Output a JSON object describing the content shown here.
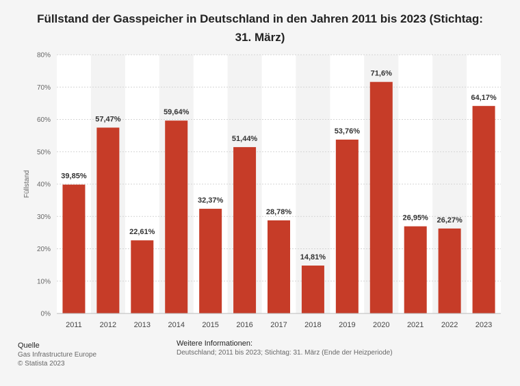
{
  "title": "Füllstand der Gasspeicher in Deutschland in den Jahren 2011 bis 2023 (Stichtag: 31. März)",
  "chart_data": {
    "type": "bar",
    "title": "Füllstand der Gasspeicher in Deutschland in den Jahren 2011 bis 2023 (Stichtag: 31. März)",
    "xlabel": "",
    "ylabel": "Füllstand",
    "categories": [
      "2011",
      "2012",
      "2013",
      "2014",
      "2015",
      "2016",
      "2017",
      "2018",
      "2019",
      "2020",
      "2021",
      "2022",
      "2023"
    ],
    "values": [
      39.85,
      57.47,
      22.61,
      59.64,
      32.37,
      51.44,
      28.78,
      14.81,
      53.76,
      71.6,
      26.95,
      26.27,
      64.17
    ],
    "value_labels": [
      "39,85%",
      "57,47%",
      "22,61%",
      "59,64%",
      "32,37%",
      "51,44%",
      "28,78%",
      "14,81%",
      "53,76%",
      "71,6%",
      "26,95%",
      "26,27%",
      "64,17%"
    ],
    "yticks": [
      0,
      10,
      20,
      30,
      40,
      50,
      60,
      70,
      80
    ],
    "ytick_labels": [
      "0%",
      "10%",
      "20%",
      "30%",
      "40%",
      "50%",
      "60%",
      "70%",
      "80%"
    ],
    "ylim": [
      0,
      80
    ],
    "grid": true,
    "legend": false,
    "bar_color": "#c63c28"
  },
  "footer": {
    "source_heading": "Quelle",
    "source": "Gas Infrastructure Europe",
    "copyright": "© Statista 2023",
    "info_heading": "Weitere Informationen:",
    "info": "Deutschland; 2011 bis 2023; Stichtag: 31. März (Ende der Heizperiode)"
  }
}
